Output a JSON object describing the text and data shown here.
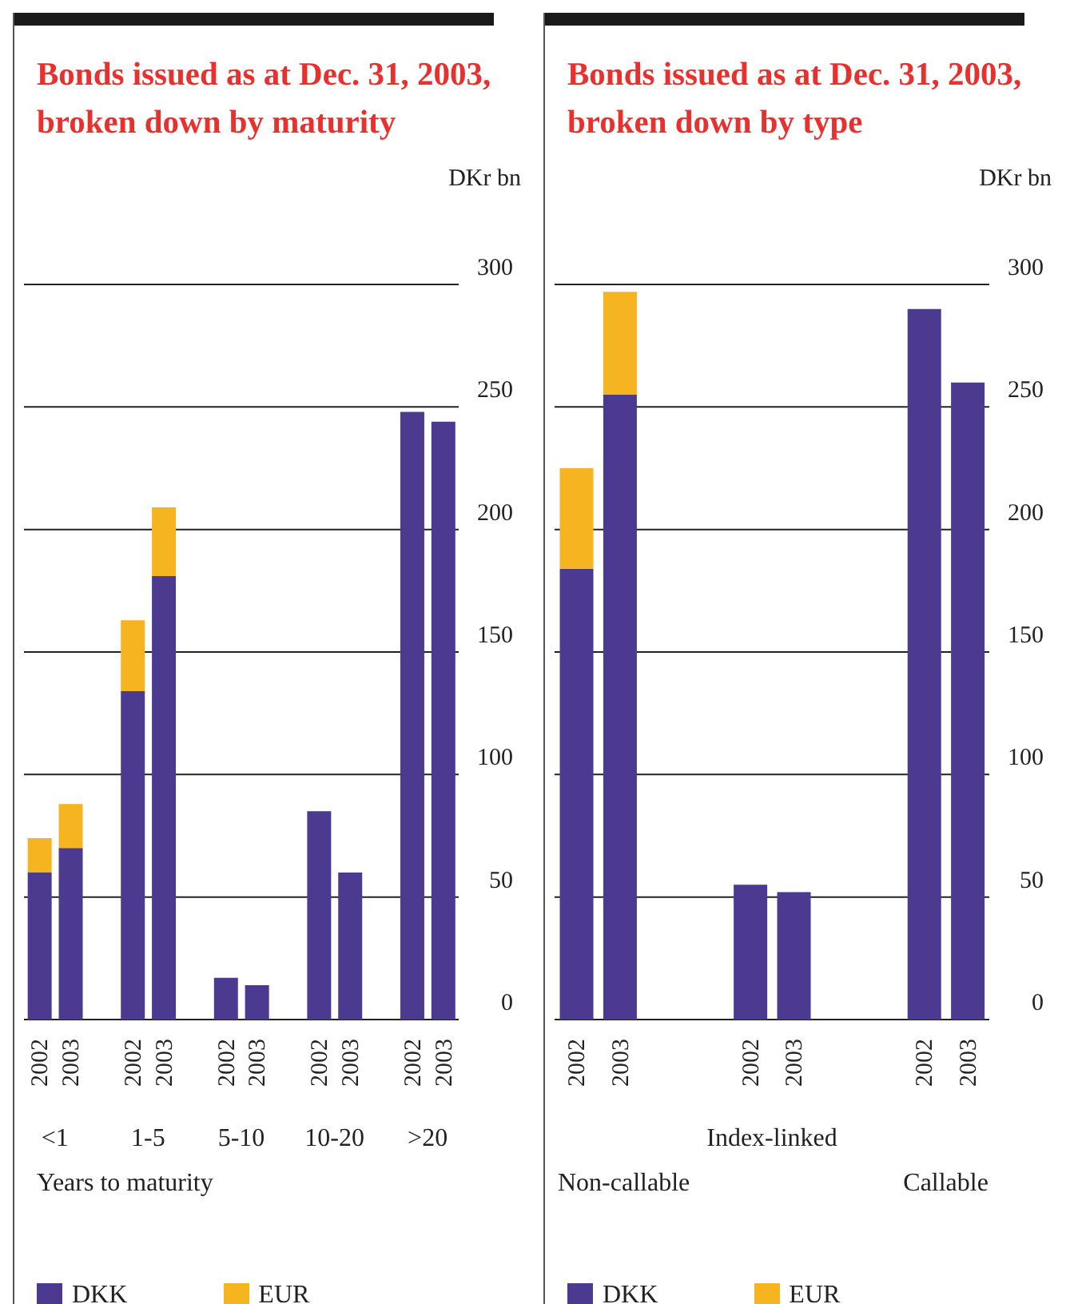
{
  "chart_data": [
    {
      "type": "bar",
      "title": "Bonds issued as at Dec. 31, 2003, broken down by maturity",
      "ylabel": "DKr bn",
      "xlabel": "Years to maturity",
      "categories": [
        "2002",
        "2003",
        null,
        "2002",
        "2003",
        null,
        "2002",
        "2003",
        null,
        "2002",
        "2003",
        null,
        "2002",
        "2003"
      ],
      "series": [
        {
          "name": "DKK",
          "color": "#4b3a8f",
          "values": [
            60,
            70,
            null,
            134,
            181,
            null,
            17,
            14,
            null,
            85,
            60,
            null,
            248,
            244
          ]
        },
        {
          "name": "EUR",
          "color": "#f6b420",
          "values": [
            14,
            18,
            null,
            29,
            28,
            null,
            0,
            0,
            null,
            0,
            0,
            null,
            0,
            0
          ]
        }
      ],
      "stacked": true,
      "ylim": [
        0,
        300
      ],
      "yticks": [
        0,
        50,
        100,
        150,
        200,
        250,
        300
      ],
      "grid": "y",
      "legend": "bottom",
      "annotations": [
        "<1",
        "1-5",
        "5-10",
        "10-20",
        ">20"
      ]
    },
    {
      "type": "bar",
      "title": "Bonds issued as at Dec. 31, 2003, broken down by type",
      "ylabel": "DKr bn",
      "categories": [
        "2002",
        "2003",
        null,
        null,
        "2002",
        "2003",
        null,
        null,
        "2002",
        "2003"
      ],
      "series": [
        {
          "name": "DKK",
          "color": "#4b3a8f",
          "values": [
            184,
            255,
            null,
            null,
            55,
            52,
            null,
            null,
            290,
            260
          ]
        },
        {
          "name": "EUR",
          "color": "#f6b420",
          "values": [
            41,
            42,
            null,
            null,
            0,
            0,
            null,
            null,
            0,
            0
          ]
        }
      ],
      "stacked": true,
      "ylim": [
        0,
        300
      ],
      "yticks": [
        0,
        50,
        100,
        150,
        200,
        250,
        300
      ],
      "grid": "y",
      "legend": "bottom",
      "annotations": [
        "Non-callable",
        "Index-linked",
        "Callable"
      ]
    }
  ]
}
